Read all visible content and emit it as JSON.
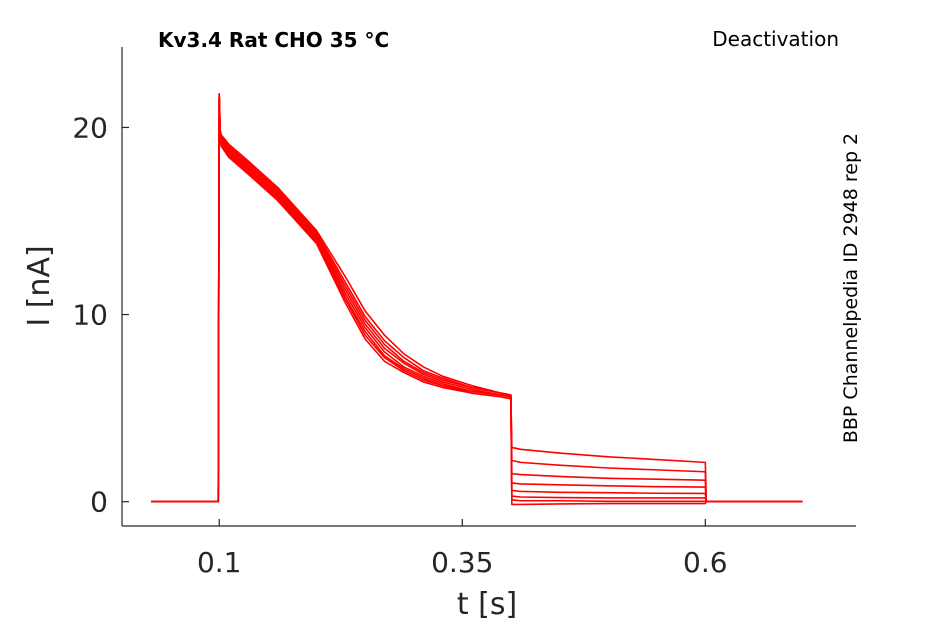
{
  "chart_data": {
    "type": "line",
    "title": "Kv3.4  Rat  CHO  35 °C",
    "protocol": "Deactivation",
    "source": "BBP Channelpedia ID 2948 rep 2",
    "xlabel": "t [s]",
    "ylabel": "I [nA]",
    "xlim": [
      0.0,
      0.755
    ],
    "ylim": [
      -1.3,
      24.3
    ],
    "xticks": [
      0.1,
      0.35,
      0.6
    ],
    "xtick_labels": [
      "0.1",
      "0.35",
      "0.6"
    ],
    "yticks": [
      0,
      10,
      20
    ],
    "ytick_labels": [
      "0",
      "10",
      "20"
    ],
    "grid": false,
    "color": "#ff0000",
    "x": [
      0.03,
      0.099,
      0.1,
      0.101,
      0.102,
      0.11,
      0.13,
      0.16,
      0.2,
      0.23,
      0.25,
      0.27,
      0.29,
      0.31,
      0.33,
      0.36,
      0.39,
      0.4,
      0.401,
      0.41,
      0.45,
      0.5,
      0.55,
      0.6,
      0.601,
      0.65,
      0.7
    ],
    "series": [
      {
        "values": [
          0,
          0,
          21.8,
          19.9,
          19.6,
          19.1,
          18.2,
          16.8,
          14.5,
          12.0,
          10.2,
          8.9,
          7.9,
          7.2,
          6.7,
          6.2,
          5.8,
          5.7,
          2.9,
          2.8,
          2.6,
          2.4,
          2.25,
          2.1,
          0,
          0,
          0
        ]
      },
      {
        "values": [
          0,
          0,
          21.8,
          19.8,
          19.5,
          19.0,
          18.1,
          16.7,
          14.4,
          11.7,
          9.9,
          8.6,
          7.7,
          7.0,
          6.6,
          6.1,
          5.8,
          5.7,
          2.2,
          2.1,
          1.95,
          1.8,
          1.7,
          1.6,
          0,
          0,
          0
        ]
      },
      {
        "values": [
          0,
          0,
          21.7,
          19.7,
          19.4,
          18.9,
          18.0,
          16.6,
          14.3,
          11.5,
          9.7,
          8.4,
          7.5,
          6.9,
          6.5,
          6.1,
          5.8,
          5.7,
          1.5,
          1.45,
          1.35,
          1.25,
          1.2,
          1.15,
          0,
          0,
          0
        ]
      },
      {
        "values": [
          0,
          0,
          21.7,
          19.6,
          19.3,
          18.8,
          17.9,
          16.5,
          14.2,
          11.3,
          9.5,
          8.2,
          7.4,
          6.8,
          6.4,
          6.0,
          5.7,
          5.7,
          1.0,
          0.95,
          0.9,
          0.85,
          0.8,
          0.78,
          0,
          0,
          0
        ]
      },
      {
        "values": [
          0,
          0,
          21.6,
          19.5,
          19.2,
          18.7,
          17.8,
          16.4,
          14.1,
          11.1,
          9.3,
          8.0,
          7.2,
          6.7,
          6.3,
          5.9,
          5.7,
          5.6,
          0.6,
          0.55,
          0.5,
          0.48,
          0.45,
          0.44,
          0,
          0,
          0
        ]
      },
      {
        "values": [
          0,
          0,
          21.6,
          19.5,
          19.2,
          18.6,
          17.7,
          16.3,
          14.0,
          10.9,
          9.1,
          7.8,
          7.1,
          6.6,
          6.2,
          5.9,
          5.7,
          5.6,
          0.3,
          0.25,
          0.22,
          0.2,
          0.2,
          0.2,
          0,
          0,
          0
        ]
      },
      {
        "values": [
          0,
          0,
          21.5,
          19.4,
          19.1,
          18.5,
          17.6,
          16.2,
          13.9,
          10.8,
          8.9,
          7.7,
          7.0,
          6.5,
          6.2,
          5.8,
          5.6,
          5.5,
          0.1,
          0.05,
          0.05,
          0.02,
          0.02,
          0.02,
          0,
          0,
          0
        ]
      },
      {
        "values": [
          0,
          0,
          21.5,
          19.3,
          19.0,
          18.4,
          17.5,
          16.1,
          13.8,
          10.6,
          8.7,
          7.5,
          6.9,
          6.4,
          6.1,
          5.8,
          5.6,
          5.5,
          -0.15,
          -0.15,
          -0.12,
          -0.1,
          -0.1,
          -0.1,
          0,
          0,
          0
        ]
      }
    ]
  }
}
